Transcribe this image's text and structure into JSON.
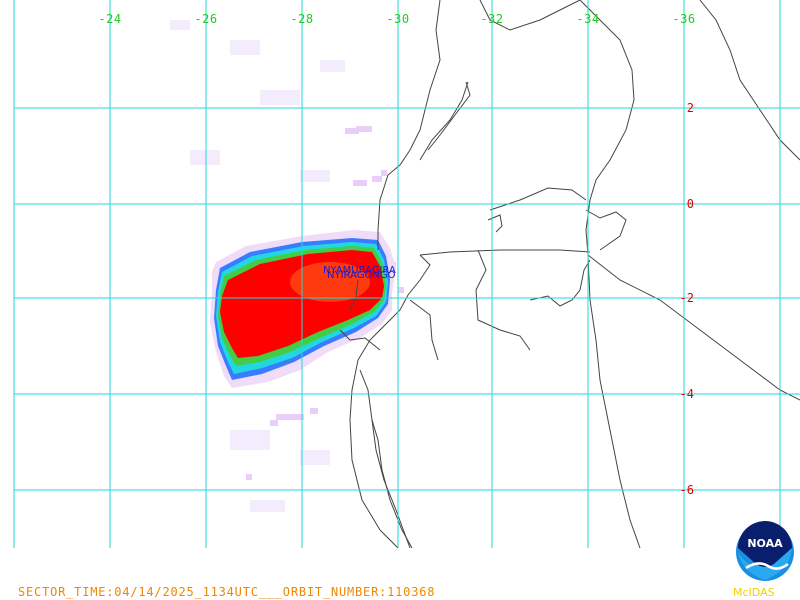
{
  "map": {
    "longitude_labels": [
      "-24",
      "-26",
      "-28",
      "-30",
      "-32",
      "-34",
      "-36"
    ],
    "latitude_labels": [
      "2",
      "0",
      "-2",
      "-4",
      "-6"
    ],
    "grid_color": "#22d8d8",
    "coast_color": "#444444",
    "plume_colors": [
      "#ff0000",
      "#ff7a1a",
      "#33cc33",
      "#22d8e0",
      "#3a6cff",
      "#eedcf8"
    ]
  },
  "volcano_labels": [
    "NYAMURAGIRA",
    "NYIRAGONGO"
  ],
  "footer": {
    "sector_time": "SECTOR_TIME:04/14/2025_1134UTC___ORBIT_NUMBER:110368"
  },
  "logo": {
    "noaa_text": "NOAA",
    "mcidas_text": "McIDAS"
  }
}
